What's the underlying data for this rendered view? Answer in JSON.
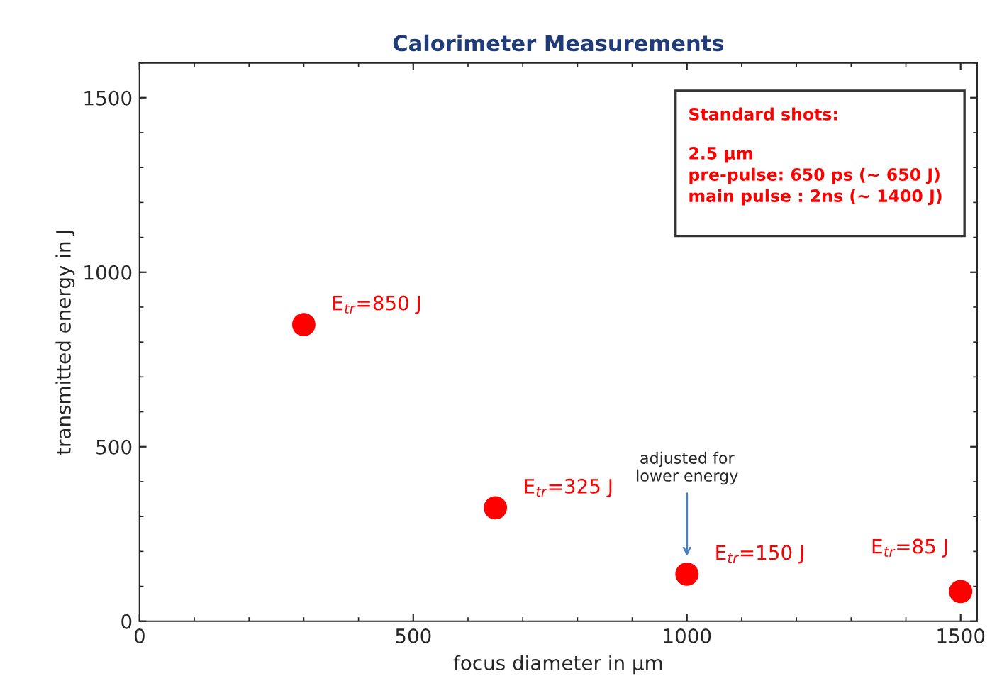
{
  "chart_data": {
    "type": "scatter",
    "title": "Calorimeter Measurements",
    "xlabel": "focus diameter in µm",
    "ylabel": "transmitted energy in J",
    "x": [
      300,
      650,
      1000,
      1500
    ],
    "series": [
      {
        "color": "#ff0000",
        "values": [
          850,
          325,
          135,
          85
        ]
      }
    ],
    "marker": "circle",
    "xlim": [
      0,
      1530
    ],
    "ylim": [
      0,
      1600
    ],
    "xticks": [
      0,
      500,
      1000,
      1500
    ],
    "yticks": [
      0,
      500,
      1000,
      1500
    ],
    "grid": false,
    "annotations": [
      {
        "text": "adjusted for\nlower energy",
        "x": 1000,
        "y": 175
      },
      {
        "text": "E$_{tr}$=850 J",
        "x": 300,
        "y": 850
      },
      {
        "text": "E$_{tr}$=325 J",
        "x": 650,
        "y": 325
      },
      {
        "text": "E$_{tr}$=150 J",
        "x": 1000,
        "y": 135
      },
      {
        "text": "E$_{tr}$=85 J",
        "x": 1500,
        "y": 85
      },
      "Standard shots:",
      "2.5 µm\npre-pulse: 650 ps (~ 650 J)\nmain pulse : 2ns (~ 1400 J)"
    ]
  }
}
